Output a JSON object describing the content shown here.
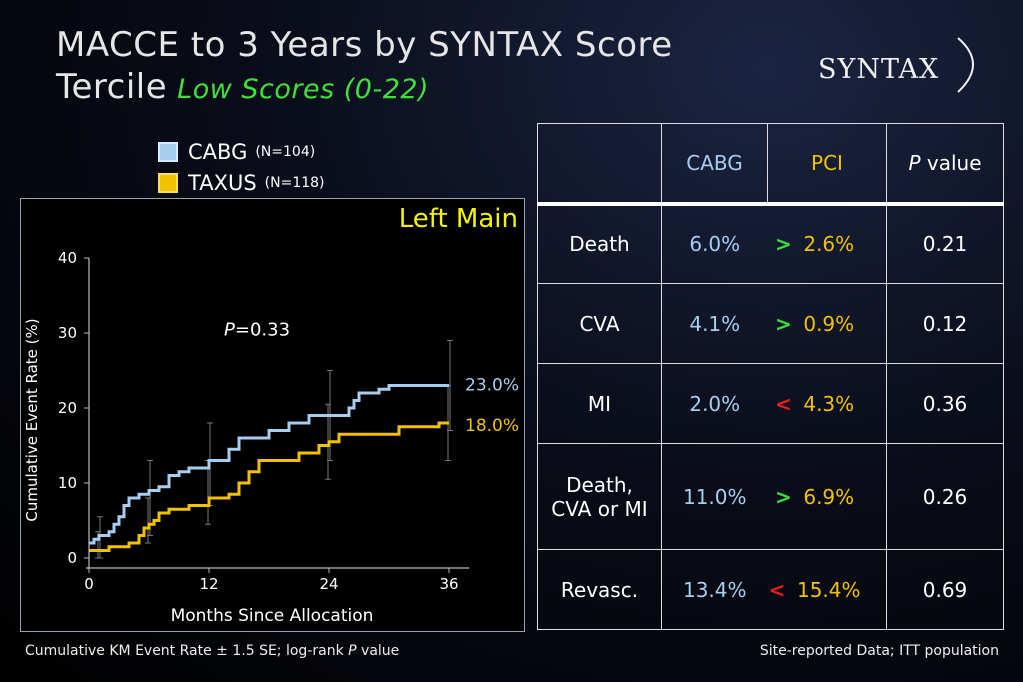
{
  "title": {
    "line1": "MACCE to 3 Years by SYNTAX Score",
    "line2": "Tercile",
    "subtitle": "Low Scores (0-22)"
  },
  "logo": {
    "text": "SYNTAX"
  },
  "legend": [
    {
      "label": "CABG",
      "n": "(N=104)",
      "color": "#a7cdef"
    },
    {
      "label": "TAXUS",
      "n": "(N=118)",
      "color": "#f2c100"
    }
  ],
  "colors": {
    "cabg": "#a7cdef",
    "pci": "#f2c100",
    "greater": "#35e03a",
    "less": "#e8201a",
    "panel_title": "#f5f500"
  },
  "chart_data": {
    "type": "line",
    "panel_title": "Left Main",
    "xlabel": "Months Since Allocation",
    "ylabel": "Cumulative Event Rate (%)",
    "xlim": [
      0,
      36
    ],
    "ylim": [
      0,
      40
    ],
    "xticks": [
      "0",
      "12",
      "24",
      "36"
    ],
    "yticks": [
      "0",
      "10",
      "20",
      "30",
      "40"
    ],
    "annotation": {
      "p_label": "P",
      "p_value": "=0.33"
    },
    "series": [
      {
        "name": "CABG",
        "end_label": "23.0%",
        "step_x": [
          0,
          0.5,
          1,
          2,
          2.5,
          3,
          3.5,
          4,
          5,
          6,
          7,
          8,
          9,
          10,
          12,
          14,
          15,
          18,
          20,
          22,
          26,
          26.5,
          27,
          29,
          30,
          36
        ],
        "step_y": [
          2,
          2.5,
          3,
          3.5,
          4.5,
          5.5,
          7,
          8,
          8.5,
          9,
          9.5,
          11,
          11.5,
          12,
          13,
          14.5,
          16,
          17,
          18,
          19,
          20,
          21,
          22,
          22.5,
          23,
          23
        ],
        "error_bars": [
          {
            "x": 1,
            "low": 0,
            "high": 5.5
          },
          {
            "x": 6,
            "low": 3,
            "high": 13
          },
          {
            "x": 12,
            "low": 7,
            "high": 18
          },
          {
            "x": 24,
            "low": 13,
            "high": 25
          },
          {
            "x": 36,
            "low": 17,
            "high": 29
          }
        ]
      },
      {
        "name": "TAXUS",
        "end_label": "18.0%",
        "step_x": [
          0,
          2,
          4,
          5,
          5.5,
          6,
          6.5,
          7,
          8,
          10,
          12,
          14,
          15,
          16,
          17,
          21,
          23,
          24,
          25,
          31,
          35,
          36
        ],
        "step_y": [
          1,
          1.5,
          2,
          3,
          4,
          4.5,
          5,
          6,
          6.5,
          7,
          8,
          8.5,
          10,
          11.5,
          13,
          14,
          15,
          15.5,
          16.5,
          17.5,
          18,
          18
        ],
        "error_bars": [
          {
            "x": 1,
            "low": 0,
            "high": 3.5
          },
          {
            "x": 6,
            "low": 2,
            "high": 8
          },
          {
            "x": 12,
            "low": 4.5,
            "high": 13
          },
          {
            "x": 24,
            "low": 10.5,
            "high": 20.5
          },
          {
            "x": 36,
            "low": 13,
            "high": 23
          }
        ]
      }
    ]
  },
  "table": {
    "headers": {
      "empty": "",
      "cabg": "CABG",
      "pci": "PCI",
      "p_italic": "P",
      "p_rest": " value"
    },
    "rows": [
      {
        "label": "Death",
        "cabg": "6.0%",
        "cmp": ">",
        "pci": "2.6%",
        "p": "0.21"
      },
      {
        "label": "CVA",
        "cabg": "4.1%",
        "cmp": ">",
        "pci": "0.9%",
        "p": "0.12"
      },
      {
        "label": "MI",
        "cabg": "2.0%",
        "cmp": "<",
        "pci": "4.3%",
        "p": "0.36"
      },
      {
        "label": "Death, CVA or MI",
        "cabg": "11.0%",
        "cmp": ">",
        "pci": "6.9%",
        "p": "0.26"
      },
      {
        "label": "Revasc.",
        "cabg": "13.4%",
        "cmp": "<",
        "pci": "15.4%",
        "p": "0.69"
      }
    ]
  },
  "footer": {
    "left_prefix": "Cumulative KM Event Rate ± 1.5 SE; log-rank ",
    "left_italic": "P",
    "left_suffix": " value",
    "right": "Site-reported Data; ITT population"
  }
}
